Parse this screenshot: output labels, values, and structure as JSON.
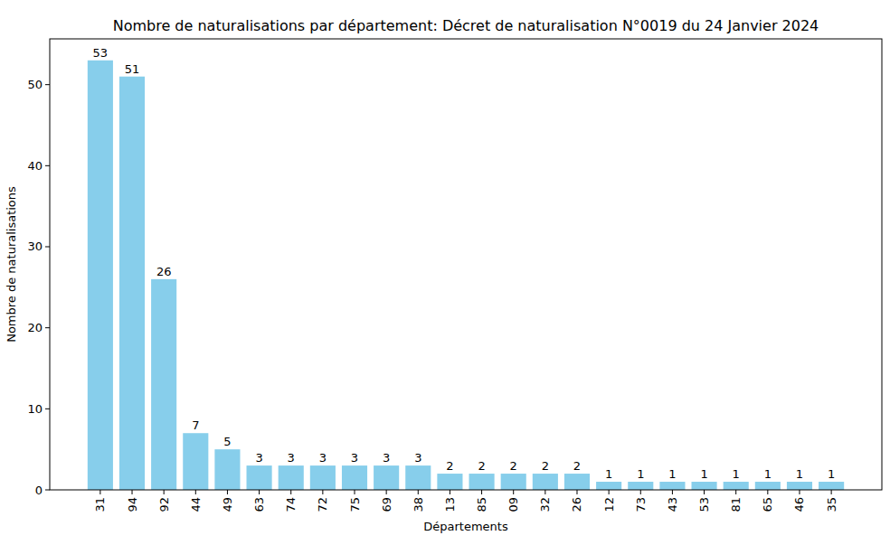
{
  "chart_data": {
    "type": "bar",
    "title": "Nombre de naturalisations par département: Décret de naturalisation N°0019 du 24 Janvier 2024",
    "x_label": "Départements",
    "y_label": "Nombre de naturalisations",
    "categories": [
      "31",
      "94",
      "92",
      "44",
      "49",
      "63",
      "74",
      "72",
      "75",
      "69",
      "38",
      "13",
      "85",
      "09",
      "32",
      "26",
      "12",
      "73",
      "43",
      "53",
      "81",
      "65",
      "46",
      "35"
    ],
    "values": [
      53,
      51,
      26,
      7,
      5,
      3,
      3,
      3,
      3,
      3,
      3,
      2,
      2,
      2,
      2,
      2,
      1,
      1,
      1,
      1,
      1,
      1,
      1,
      1
    ],
    "color": "#87ceeb",
    "ylim": [
      0,
      55.65
    ],
    "yticks": [
      0,
      10,
      20,
      30,
      40,
      50
    ],
    "grid": false,
    "data_labels": true
  }
}
